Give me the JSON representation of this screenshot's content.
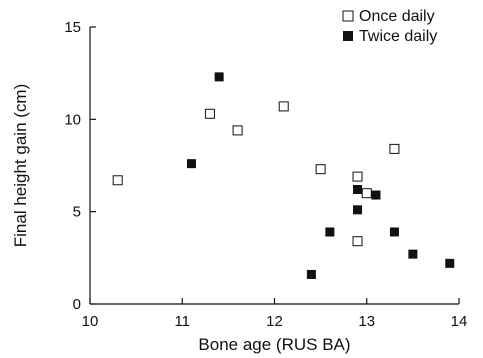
{
  "chart_data": {
    "type": "scatter",
    "xlabel": "Bone age (RUS BA)",
    "ylabel": "Final height gain (cm)",
    "xlim": [
      10,
      14
    ],
    "ylim": [
      0,
      15
    ],
    "xticks": [
      10,
      11,
      12,
      13,
      14
    ],
    "yticks": [
      0,
      5,
      10,
      15
    ],
    "x_tick_labels": [
      "10",
      "11",
      "12",
      "13",
      "14"
    ],
    "y_tick_labels": [
      "0",
      "5",
      "10",
      "15"
    ],
    "grid": false,
    "legend_position": "top-right",
    "series": [
      {
        "name": "Once daily",
        "marker": "open-square",
        "points": [
          {
            "x": 10.3,
            "y": 6.7
          },
          {
            "x": 11.3,
            "y": 10.3
          },
          {
            "x": 11.6,
            "y": 9.4
          },
          {
            "x": 12.1,
            "y": 10.7
          },
          {
            "x": 12.5,
            "y": 7.3
          },
          {
            "x": 12.9,
            "y": 6.9
          },
          {
            "x": 13.0,
            "y": 6.0
          },
          {
            "x": 13.3,
            "y": 8.4
          },
          {
            "x": 12.9,
            "y": 3.4
          }
        ]
      },
      {
        "name": "Twice daily",
        "marker": "filled-square",
        "points": [
          {
            "x": 11.4,
            "y": 12.3
          },
          {
            "x": 11.1,
            "y": 7.6
          },
          {
            "x": 12.9,
            "y": 6.2
          },
          {
            "x": 13.1,
            "y": 5.9
          },
          {
            "x": 12.9,
            "y": 5.1
          },
          {
            "x": 12.6,
            "y": 3.9
          },
          {
            "x": 13.3,
            "y": 3.9
          },
          {
            "x": 12.4,
            "y": 1.6
          },
          {
            "x": 13.5,
            "y": 2.7
          },
          {
            "x": 13.9,
            "y": 2.2
          }
        ]
      }
    ]
  }
}
